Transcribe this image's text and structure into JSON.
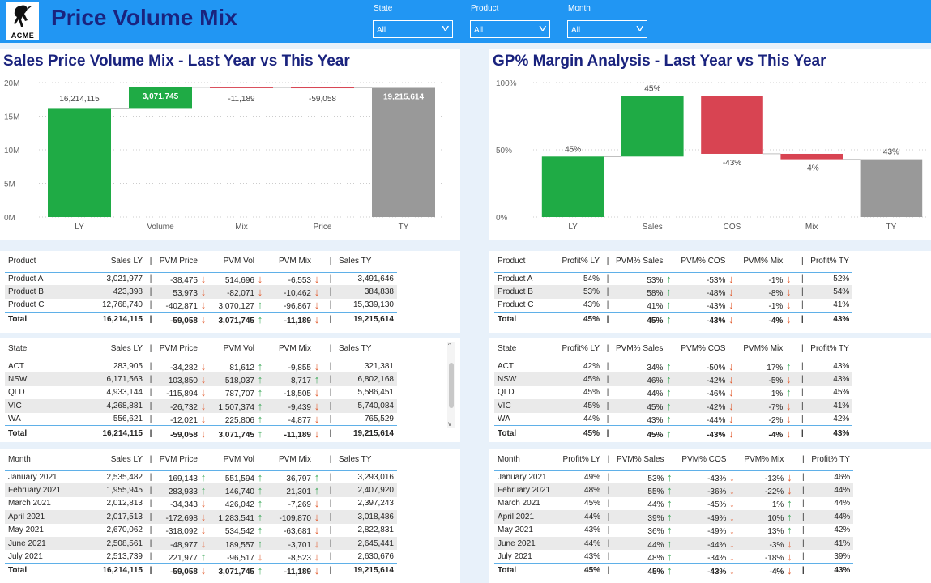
{
  "header": {
    "logo_text": "ACME",
    "title": "Price Volume Mix",
    "filters": [
      {
        "label": "State",
        "value": "All"
      },
      {
        "label": "Product",
        "value": "All"
      },
      {
        "label": "Month",
        "value": "All"
      }
    ]
  },
  "chart_data": [
    {
      "type": "waterfall",
      "title": "Sales Price Volume Mix - Last Year vs This Year",
      "categories": [
        "LY",
        "Volume",
        "Mix",
        "Price",
        "TY"
      ],
      "values": [
        16214115,
        3071745,
        -11189,
        -59058,
        19215614
      ],
      "data_labels": [
        "16,214,115",
        "3,071,745",
        "-11,189",
        "-59,058",
        "19,215,614"
      ],
      "y_ticks": [
        "0M",
        "5M",
        "10M",
        "15M",
        "20M"
      ],
      "ylim": [
        0,
        20000000
      ],
      "colors": {
        "total_ly": "#1fab45",
        "increase": "#1fab45",
        "decrease": "#d84452",
        "total_ty": "#999999"
      }
    },
    {
      "type": "waterfall",
      "title": "GP% Margin Analysis - Last Year vs This Year",
      "categories": [
        "LY",
        "Sales",
        "COS",
        "Mix",
        "TY"
      ],
      "values": [
        45,
        45,
        -43,
        -4,
        43
      ],
      "data_labels": [
        "45%",
        "45%",
        "-43%",
        "-4%",
        "43%"
      ],
      "y_ticks": [
        "0%",
        "50%",
        "100%"
      ],
      "ylim": [
        0,
        100
      ],
      "colors": {
        "total_ly": "#1fab45",
        "increase": "#1fab45",
        "decrease": "#d84452",
        "total_ty": "#999999"
      }
    }
  ],
  "tables": {
    "pvm_product": {
      "columns": [
        "Product",
        "Sales LY",
        "PVM Price",
        "PVM Vol",
        "PVM Mix",
        "Sales TY"
      ],
      "rows": [
        {
          "name": "Product A",
          "ly": "3,021,977",
          "price": "-38,475",
          "price_dir": "down",
          "vol": "514,696",
          "vol_dir": "down",
          "mix": "-6,553",
          "mix_dir": "down",
          "ty": "3,491,646"
        },
        {
          "name": "Product B",
          "ly": "423,398",
          "price": "53,973",
          "price_dir": "down",
          "vol": "-82,071",
          "vol_dir": "down",
          "mix": "-10,462",
          "mix_dir": "down",
          "ty": "384,838"
        },
        {
          "name": "Product C",
          "ly": "12,768,740",
          "price": "-402,871",
          "price_dir": "down",
          "vol": "3,070,127",
          "vol_dir": "up",
          "mix": "-96,867",
          "mix_dir": "down",
          "ty": "15,339,130"
        }
      ],
      "total": {
        "name": "Total",
        "ly": "16,214,115",
        "price": "-59,058",
        "price_dir": "down",
        "vol": "3,071,745",
        "vol_dir": "up",
        "mix": "-11,189",
        "mix_dir": "down",
        "ty": "19,215,614"
      }
    },
    "pvm_state": {
      "columns": [
        "State",
        "Sales LY",
        "PVM Price",
        "PVM Vol",
        "PVM Mix",
        "Sales TY"
      ],
      "rows": [
        {
          "name": "ACT",
          "ly": "283,905",
          "price": "-34,282",
          "price_dir": "down",
          "vol": "81,612",
          "vol_dir": "up",
          "mix": "-9,855",
          "mix_dir": "down",
          "ty": "321,381"
        },
        {
          "name": "NSW",
          "ly": "6,171,563",
          "price": "103,850",
          "price_dir": "down",
          "vol": "518,037",
          "vol_dir": "up",
          "mix": "8,717",
          "mix_dir": "up",
          "ty": "6,802,168"
        },
        {
          "name": "QLD",
          "ly": "4,933,144",
          "price": "-115,894",
          "price_dir": "down",
          "vol": "787,707",
          "vol_dir": "up",
          "mix": "-18,505",
          "mix_dir": "down",
          "ty": "5,586,451"
        },
        {
          "name": "VIC",
          "ly": "4,268,881",
          "price": "-26,732",
          "price_dir": "down",
          "vol": "1,507,374",
          "vol_dir": "up",
          "mix": "-9,439",
          "mix_dir": "down",
          "ty": "5,740,084"
        },
        {
          "name": "WA",
          "ly": "556,621",
          "price": "-12,021",
          "price_dir": "down",
          "vol": "225,806",
          "vol_dir": "up",
          "mix": "-4,877",
          "mix_dir": "down",
          "ty": "765,529"
        }
      ],
      "total": {
        "name": "Total",
        "ly": "16,214,115",
        "price": "-59,058",
        "price_dir": "down",
        "vol": "3,071,745",
        "vol_dir": "up",
        "mix": "-11,189",
        "mix_dir": "down",
        "ty": "19,215,614"
      }
    },
    "pvm_month": {
      "columns": [
        "Month",
        "Sales LY",
        "PVM Price",
        "PVM Vol",
        "PVM Mix",
        "Sales TY"
      ],
      "rows": [
        {
          "name": "January 2021",
          "ly": "2,535,482",
          "price": "169,143",
          "price_dir": "up",
          "vol": "551,594",
          "vol_dir": "up",
          "mix": "36,797",
          "mix_dir": "up",
          "ty": "3,293,016"
        },
        {
          "name": "February 2021",
          "ly": "1,955,945",
          "price": "283,933",
          "price_dir": "up",
          "vol": "146,740",
          "vol_dir": "up",
          "mix": "21,301",
          "mix_dir": "up",
          "ty": "2,407,920"
        },
        {
          "name": "March 2021",
          "ly": "2,012,813",
          "price": "-34,343",
          "price_dir": "down",
          "vol": "426,042",
          "vol_dir": "up",
          "mix": "-7,269",
          "mix_dir": "down",
          "ty": "2,397,243"
        },
        {
          "name": "April 2021",
          "ly": "2,017,513",
          "price": "-172,698",
          "price_dir": "down",
          "vol": "1,283,541",
          "vol_dir": "up",
          "mix": "-109,870",
          "mix_dir": "down",
          "ty": "3,018,486"
        },
        {
          "name": "May 2021",
          "ly": "2,670,062",
          "price": "-318,092",
          "price_dir": "down",
          "vol": "534,542",
          "vol_dir": "up",
          "mix": "-63,681",
          "mix_dir": "down",
          "ty": "2,822,831"
        },
        {
          "name": "June 2021",
          "ly": "2,508,561",
          "price": "-48,977",
          "price_dir": "down",
          "vol": "189,557",
          "vol_dir": "up",
          "mix": "-3,701",
          "mix_dir": "down",
          "ty": "2,645,441"
        },
        {
          "name": "July 2021",
          "ly": "2,513,739",
          "price": "221,977",
          "price_dir": "up",
          "vol": "-96,517",
          "vol_dir": "down",
          "mix": "-8,523",
          "mix_dir": "down",
          "ty": "2,630,676"
        }
      ],
      "total": {
        "name": "Total",
        "ly": "16,214,115",
        "price": "-59,058",
        "price_dir": "down",
        "vol": "3,071,745",
        "vol_dir": "up",
        "mix": "-11,189",
        "mix_dir": "down",
        "ty": "19,215,614"
      }
    },
    "gp_product": {
      "columns": [
        "Product",
        "Profit% LY",
        "PVM% Sales",
        "PVM% COS",
        "PVM% Mix",
        "Profit% TY"
      ],
      "rows": [
        {
          "name": "Product A",
          "ly": "54%",
          "sales": "53%",
          "sales_dir": "up",
          "cos": "-53%",
          "cos_dir": "down",
          "mix": "-1%",
          "mix_dir": "down",
          "ty": "52%"
        },
        {
          "name": "Product B",
          "ly": "53%",
          "sales": "58%",
          "sales_dir": "up",
          "cos": "-48%",
          "cos_dir": "down",
          "mix": "-8%",
          "mix_dir": "down",
          "ty": "54%"
        },
        {
          "name": "Product C",
          "ly": "43%",
          "sales": "41%",
          "sales_dir": "up",
          "cos": "-43%",
          "cos_dir": "down",
          "mix": "-1%",
          "mix_dir": "down",
          "ty": "41%"
        }
      ],
      "total": {
        "name": "Total",
        "ly": "45%",
        "sales": "45%",
        "sales_dir": "up",
        "cos": "-43%",
        "cos_dir": "down",
        "mix": "-4%",
        "mix_dir": "down",
        "ty": "43%"
      }
    },
    "gp_state": {
      "columns": [
        "State",
        "Profit% LY",
        "PVM% Sales",
        "PVM% COS",
        "PVM% Mix",
        "Profit% TY"
      ],
      "rows": [
        {
          "name": "ACT",
          "ly": "42%",
          "sales": "34%",
          "sales_dir": "up",
          "cos": "-50%",
          "cos_dir": "down",
          "mix": "17%",
          "mix_dir": "up",
          "ty": "43%"
        },
        {
          "name": "NSW",
          "ly": "45%",
          "sales": "46%",
          "sales_dir": "up",
          "cos": "-42%",
          "cos_dir": "down",
          "mix": "-5%",
          "mix_dir": "down",
          "ty": "43%"
        },
        {
          "name": "QLD",
          "ly": "45%",
          "sales": "44%",
          "sales_dir": "up",
          "cos": "-46%",
          "cos_dir": "down",
          "mix": "1%",
          "mix_dir": "up",
          "ty": "45%"
        },
        {
          "name": "VIC",
          "ly": "45%",
          "sales": "45%",
          "sales_dir": "up",
          "cos": "-42%",
          "cos_dir": "down",
          "mix": "-7%",
          "mix_dir": "down",
          "ty": "41%"
        },
        {
          "name": "WA",
          "ly": "44%",
          "sales": "43%",
          "sales_dir": "up",
          "cos": "-44%",
          "cos_dir": "down",
          "mix": "-2%",
          "mix_dir": "down",
          "ty": "42%"
        }
      ],
      "total": {
        "name": "Total",
        "ly": "45%",
        "sales": "45%",
        "sales_dir": "up",
        "cos": "-43%",
        "cos_dir": "down",
        "mix": "-4%",
        "mix_dir": "down",
        "ty": "43%"
      }
    },
    "gp_month": {
      "columns": [
        "Month",
        "Profit% LY",
        "PVM% Sales",
        "PVM% COS",
        "PVM% Mix",
        "Profit% TY"
      ],
      "rows": [
        {
          "name": "January 2021",
          "ly": "49%",
          "sales": "53%",
          "sales_dir": "up",
          "cos": "-43%",
          "cos_dir": "down",
          "mix": "-13%",
          "mix_dir": "down",
          "ty": "46%"
        },
        {
          "name": "February 2021",
          "ly": "48%",
          "sales": "55%",
          "sales_dir": "up",
          "cos": "-36%",
          "cos_dir": "down",
          "mix": "-22%",
          "mix_dir": "down",
          "ty": "44%"
        },
        {
          "name": "March 2021",
          "ly": "45%",
          "sales": "44%",
          "sales_dir": "up",
          "cos": "-45%",
          "cos_dir": "down",
          "mix": "1%",
          "mix_dir": "up",
          "ty": "44%"
        },
        {
          "name": "April 2021",
          "ly": "44%",
          "sales": "39%",
          "sales_dir": "up",
          "cos": "-49%",
          "cos_dir": "down",
          "mix": "10%",
          "mix_dir": "up",
          "ty": "44%"
        },
        {
          "name": "May 2021",
          "ly": "43%",
          "sales": "36%",
          "sales_dir": "up",
          "cos": "-49%",
          "cos_dir": "down",
          "mix": "13%",
          "mix_dir": "up",
          "ty": "42%"
        },
        {
          "name": "June 2021",
          "ly": "44%",
          "sales": "44%",
          "sales_dir": "up",
          "cos": "-44%",
          "cos_dir": "down",
          "mix": "-3%",
          "mix_dir": "down",
          "ty": "41%"
        },
        {
          "name": "July 2021",
          "ly": "43%",
          "sales": "48%",
          "sales_dir": "up",
          "cos": "-34%",
          "cos_dir": "down",
          "mix": "-18%",
          "mix_dir": "down",
          "ty": "39%"
        }
      ],
      "total": {
        "name": "Total",
        "ly": "45%",
        "sales": "45%",
        "sales_dir": "up",
        "cos": "-43%",
        "cos_dir": "down",
        "mix": "-4%",
        "mix_dir": "down",
        "ty": "43%"
      }
    }
  }
}
